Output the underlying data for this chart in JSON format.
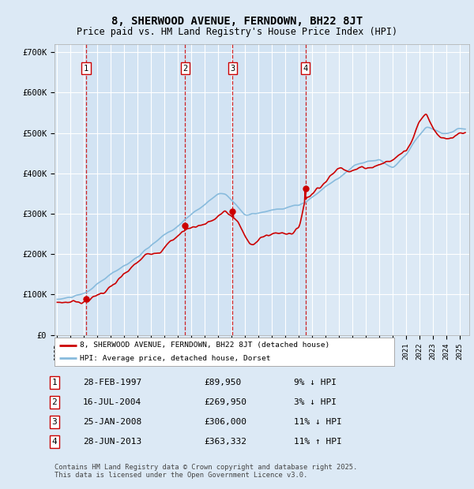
{
  "title": "8, SHERWOOD AVENUE, FERNDOWN, BH22 8JT",
  "subtitle": "Price paid vs. HM Land Registry's House Price Index (HPI)",
  "background_color": "#dce9f5",
  "plot_bg_color": "#dce9f5",
  "grid_color": "#ffffff",
  "ylim": [
    0,
    720000
  ],
  "yticks": [
    0,
    100000,
    200000,
    300000,
    400000,
    500000,
    600000,
    700000
  ],
  "ytick_labels": [
    "£0",
    "£100K",
    "£200K",
    "£300K",
    "£400K",
    "£500K",
    "£600K",
    "£700K"
  ],
  "xlim_start": 1994.8,
  "xlim_end": 2025.7,
  "sale_dates": [
    1997.16,
    2004.54,
    2008.07,
    2013.49
  ],
  "sale_prices": [
    89950,
    269950,
    306000,
    363332
  ],
  "sale_labels": [
    "1",
    "2",
    "3",
    "4"
  ],
  "legend_entries": [
    "8, SHERWOOD AVENUE, FERNDOWN, BH22 8JT (detached house)",
    "HPI: Average price, detached house, Dorset"
  ],
  "legend_colors": [
    "#cc0000",
    "#88bbdd"
  ],
  "footer_text": "Contains HM Land Registry data © Crown copyright and database right 2025.\nThis data is licensed under the Open Government Licence v3.0.",
  "table_data": [
    [
      "1",
      "28-FEB-1997",
      "£89,950",
      "9% ↓ HPI"
    ],
    [
      "2",
      "16-JUL-2004",
      "£269,950",
      "3% ↓ HPI"
    ],
    [
      "3",
      "25-JAN-2008",
      "£306,000",
      "11% ↓ HPI"
    ],
    [
      "4",
      "28-JUN-2013",
      "£363,332",
      "11% ↑ HPI"
    ]
  ]
}
